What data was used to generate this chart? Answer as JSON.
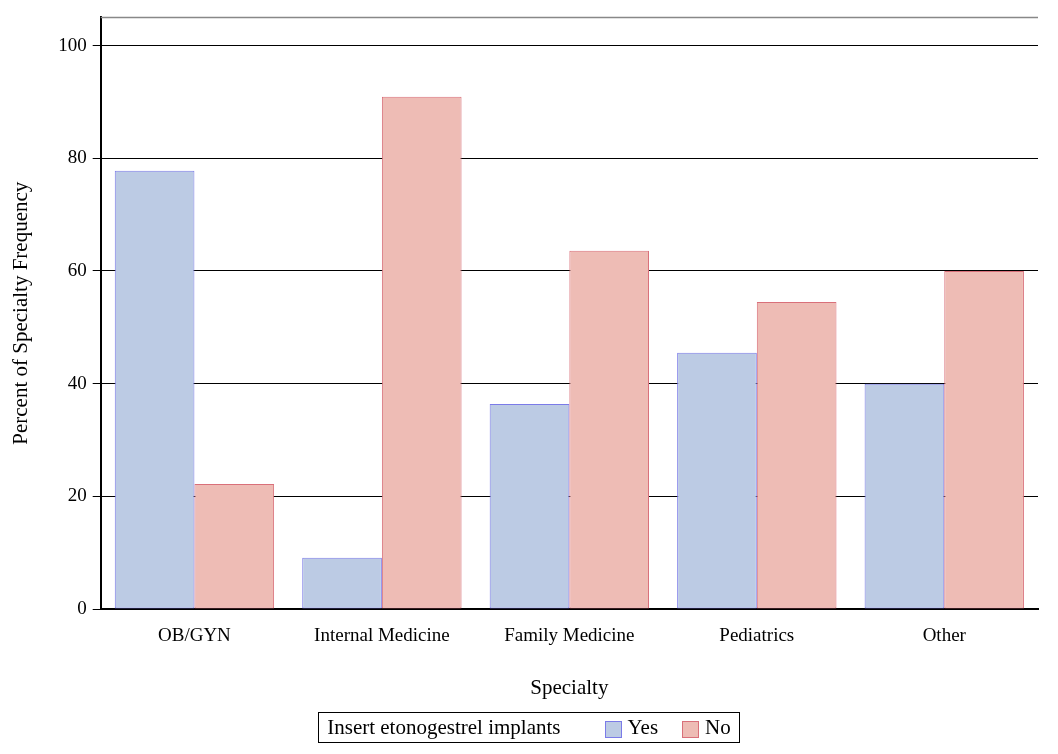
{
  "chart_data": {
    "type": "bar",
    "xlabel": "Specialty",
    "ylabel": "Percent of Specialty Frequency",
    "legend_title": "Insert etonogestrel implants",
    "legend": "bottom",
    "grid": "y",
    "categories": [
      "OB/GYN",
      "Internal Medicine",
      "Family Medicine",
      "Pediatrics",
      "Other"
    ],
    "ylim": [
      0,
      105
    ],
    "yticks": [
      0,
      20,
      40,
      60,
      80,
      100
    ],
    "series": [
      {
        "name": "Yes",
        "color": "#bccbe4",
        "values": [
          77.8,
          9.1,
          36.4,
          45.5,
          40
        ]
      },
      {
        "name": "No",
        "color": "#eebcb5",
        "values": [
          22.2,
          90.9,
          63.6,
          54.5,
          60
        ]
      }
    ]
  }
}
